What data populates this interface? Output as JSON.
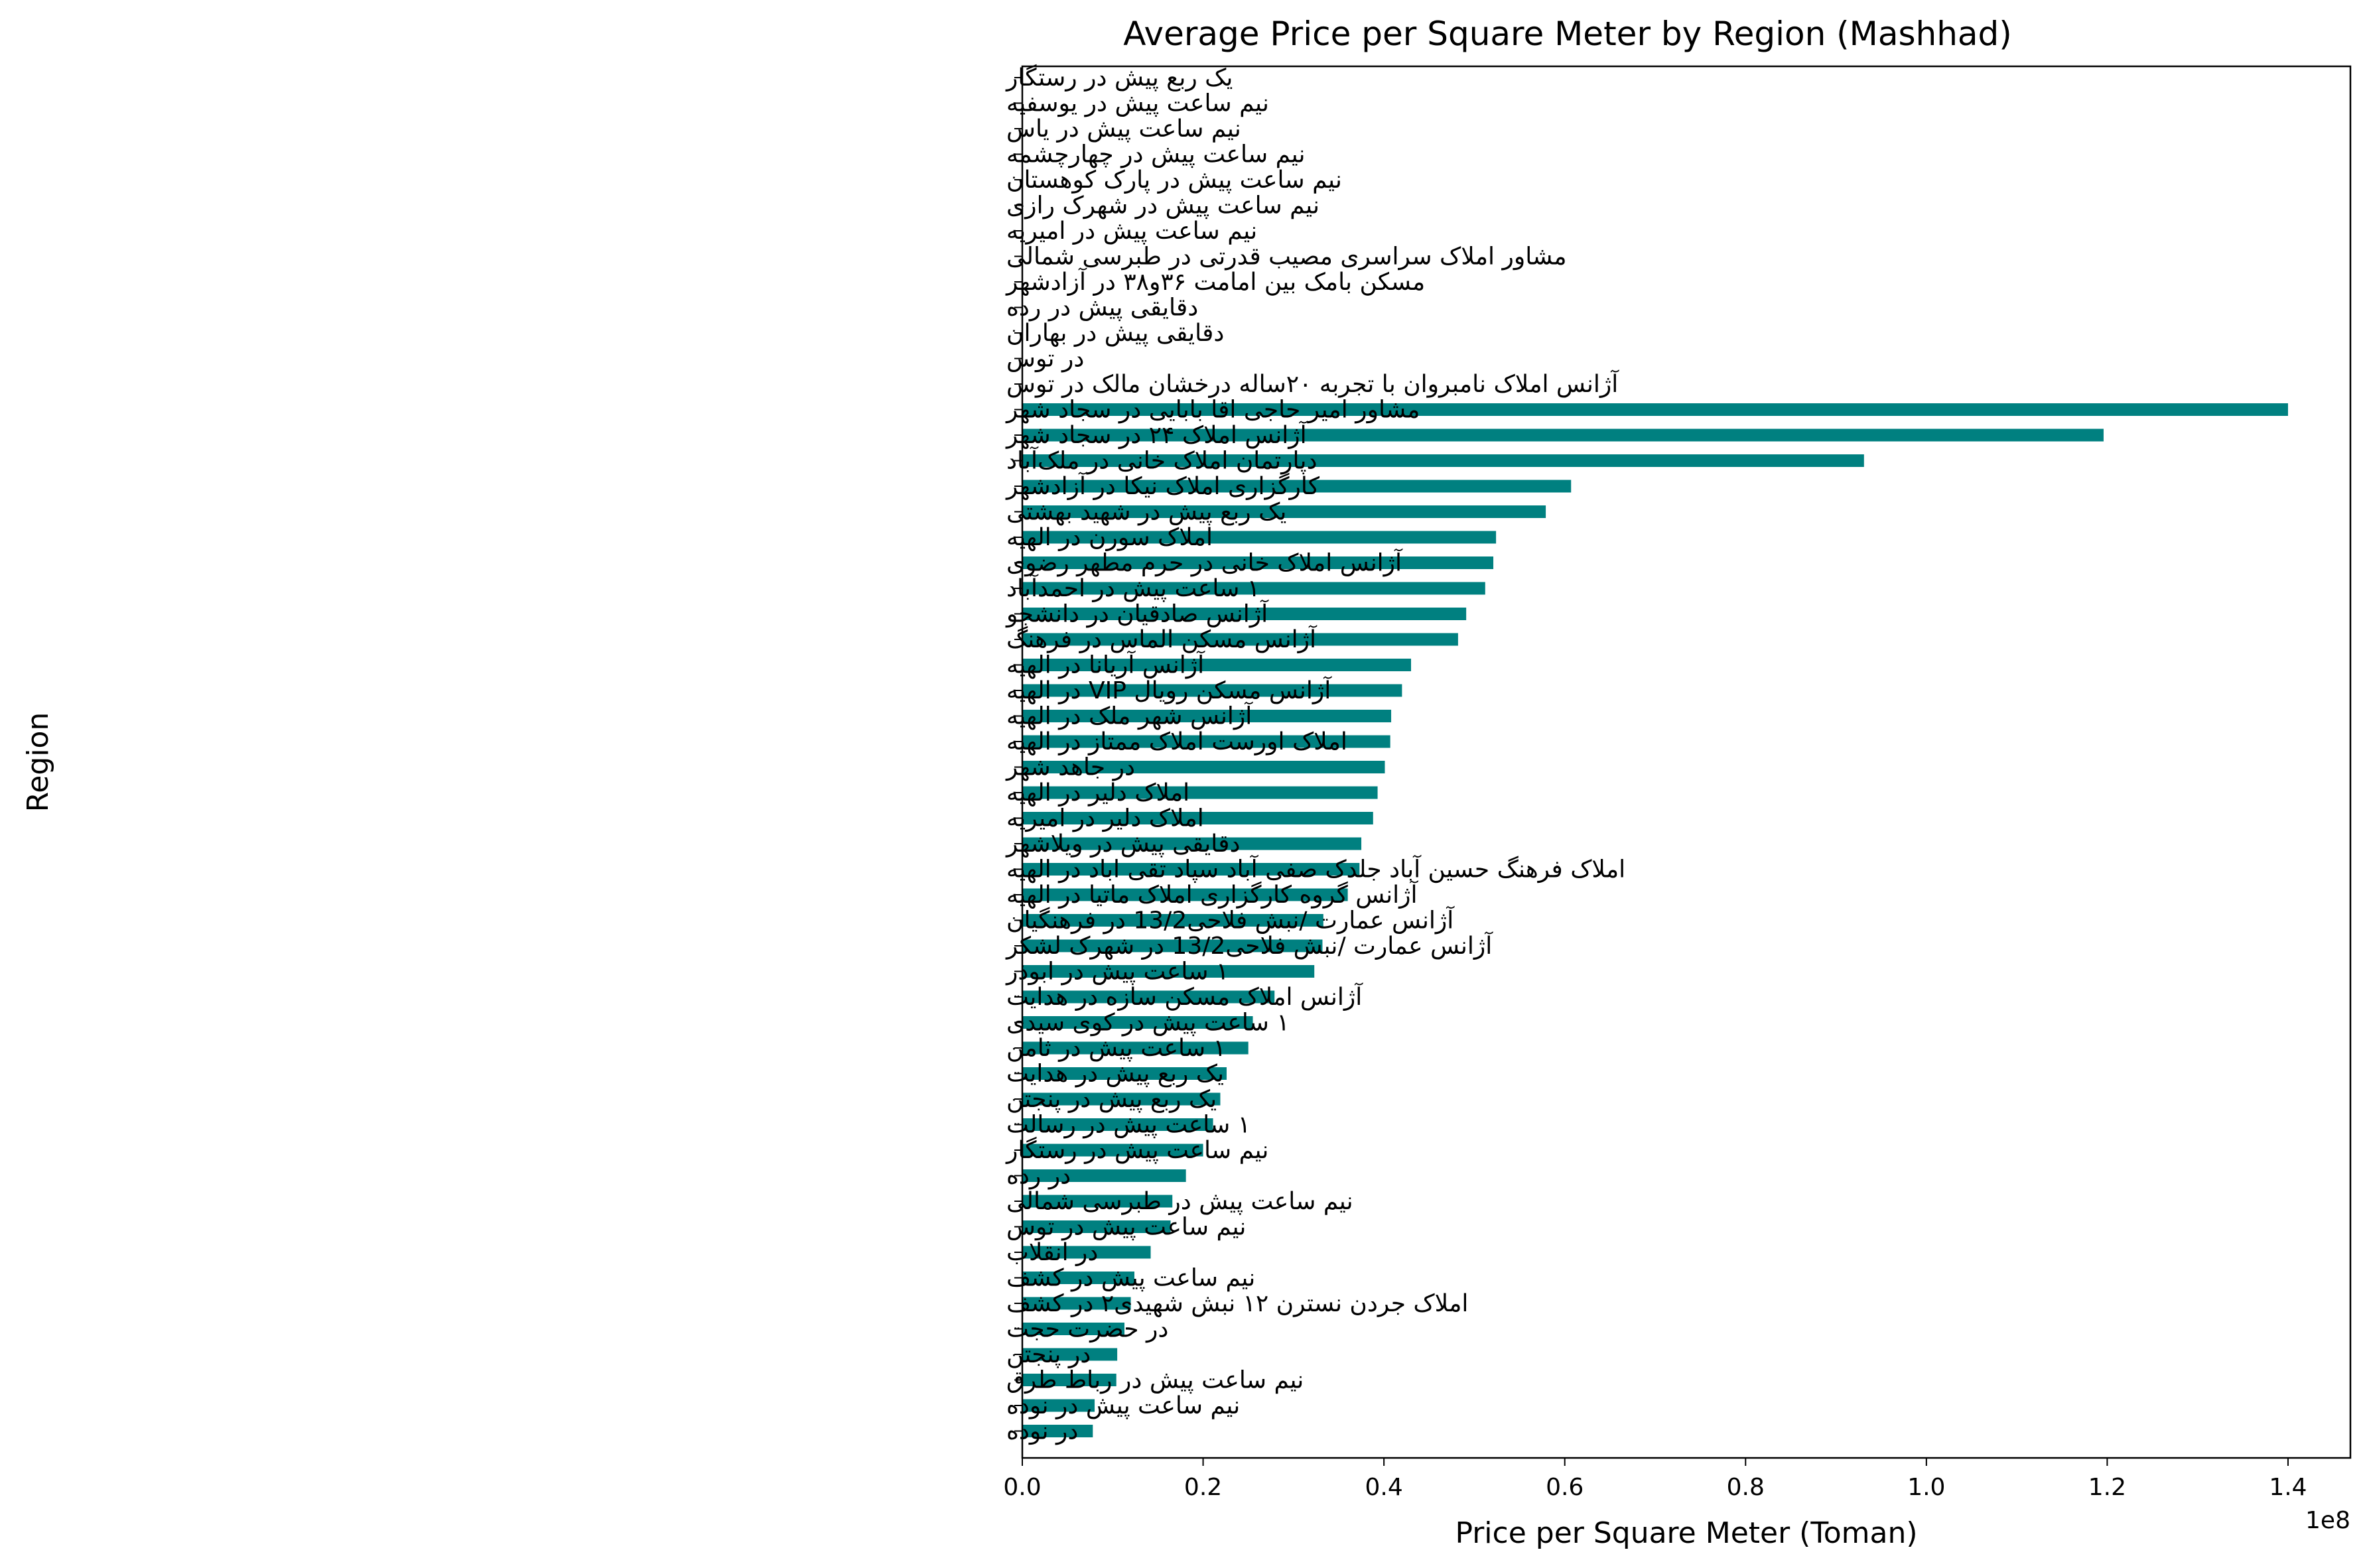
{
  "chart_data": {
    "type": "bar",
    "orientation": "horizontal",
    "title": "Average Price per Square Meter by Region (Mashhad)",
    "xlabel": "Price per Square Meter (Toman)",
    "ylabel": "Region",
    "xlim": [
      0,
      146900000
    ],
    "x_ticks": [
      0,
      20000000,
      40000000,
      60000000,
      80000000,
      100000000,
      120000000,
      140000000
    ],
    "x_tick_labels": [
      "0.0",
      "0.2",
      "0.4",
      "0.6",
      "0.8",
      "1.0",
      "1.2",
      "1.4"
    ],
    "x_offset_label": "1e8",
    "bar_color": "#008080",
    "grid": false,
    "legend": "none",
    "categories": [
      "یک ربع پیش در رستگار",
      "نیم ساعت پیش در یوسفیه",
      "نیم ساعت پیش در یاس",
      "نیم ساعت پیش در چهارچشمه",
      "نیم ساعت پیش در پارک کوهستان",
      "نیم ساعت پیش در شهرک رازی",
      "نیم ساعت پیش در امیریه",
      "مشاور املاک سراسری مصیب قدرتی در طبرسی شمالی",
      "مسکن بامک بین امامت ۳۶و۳۸ در آزادشهر",
      "دقایقی پیش در رده",
      "دقایقی پیش در بهاران",
      "در توس",
      "آژانس املاک نامبروان با تجربه ۲۰ساله درخشان مالک در توس",
      "مشاور امیر حاجی اقا بابایی در سجاد شهر",
      "آژانس املاک ۲۴ در سجاد شهر",
      "دپارتمان املاک خانی در ملک‌آباد",
      "کارگزاری املاک نیکا در آزادشهر",
      "یک ربع پیش در شهید بهشتی",
      "املاک سورن در الهیه",
      "آژانس املاک خانی در حرم مطهر رضوی",
      "۱ ساعت پیش در احمدآباد",
      "آژانس صادقیان در دانشجو",
      "آژانس مسکن الماس در فرهنگ",
      "آژانس آریانا در الهیه",
      "آژانس مسکن رویال VIP در الهیه",
      "آژانس شهر ملک در الهیه",
      "املاک اورست املاک ممتاز در الهیه",
      "در جاهد شهر",
      "املاک دلیر در الهیه",
      "املاک دلیر در امیریه",
      "دقایقی پیش در ویلاشهر",
      "املاک فرهنگ حسین آباد جلدک صفی آباد سپاد تقی اباد در الهیه",
      "آژانس گروه کارگزاری املاک ماتیا در الهیه",
      "آژانس عمارت /نبش فلاحی13/2 در فرهنگیان",
      "آژانس عمارت /نبش فلاحی13/2 در شهرک لشکر",
      "۱ ساعت پیش در ابوذر",
      "آژانس املاک مسکن سازه در هدایت",
      "۱ ساعت پیش در کوی سیدی",
      "۱ ساعت پیش در ثامن",
      "یک ربع پیش در هدایت",
      "یک ربع پیش در پنجتن",
      "۱ ساعت پیش در رسالت",
      "نیم ساعت پیش در رستگار",
      "در رده",
      "نیم ساعت پیش در طبرسی شمالی",
      "نیم ساعت پیش در توس",
      "در انقلاب",
      "نیم ساعت پیش در کشف",
      "املاک جردن نسترن ۱۲ نبش شهیدی۲ در کشف",
      "در حضرت حجت",
      "در پنجتن",
      "نیم ساعت پیش در رباط طرق",
      "نیم ساعت پیش در نوده",
      "در نوده"
    ],
    "values": [
      0,
      0,
      0,
      0,
      0,
      0,
      0,
      0,
      0,
      0,
      0,
      0,
      0,
      140000000,
      119600000,
      93100000,
      60700000,
      57900000,
      52400000,
      52100000,
      51200000,
      49100000,
      48200000,
      43000000,
      42000000,
      40800000,
      40700000,
      40100000,
      39300000,
      38800000,
      37500000,
      37300000,
      36000000,
      33300000,
      33200000,
      32300000,
      27900000,
      25500000,
      25000000,
      22600000,
      21900000,
      21100000,
      20000000,
      18100000,
      16600000,
      16400000,
      14200000,
      12400000,
      12000000,
      11300000,
      10500000,
      10400000,
      8000000,
      7800000
    ]
  }
}
